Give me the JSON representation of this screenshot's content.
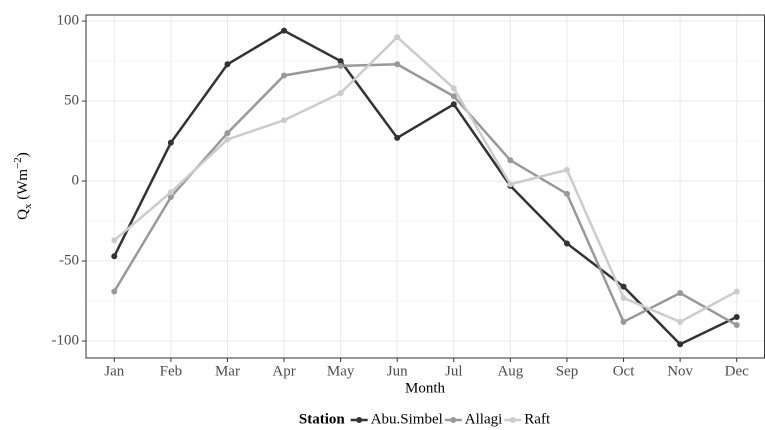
{
  "chart_data": {
    "type": "line",
    "x_label": "Month",
    "y_label": [
      "Q",
      "x",
      " (Wm",
      "−2",
      ")"
    ],
    "legend_title": "Station",
    "legend_position": "bottom",
    "grid": true,
    "categories": [
      "Jan",
      "Feb",
      "Mar",
      "Apr",
      "May",
      "Jun",
      "Jul",
      "Aug",
      "Sep",
      "Oct",
      "Nov",
      "Dec"
    ],
    "ylim": [
      -110.6,
      103.8
    ],
    "yticks": [
      -100,
      -50,
      0,
      50,
      100
    ],
    "series": [
      {
        "name": "Abu.Simbel",
        "color": "#333333",
        "values": [
          -47,
          24,
          73,
          94,
          75,
          27,
          48,
          -3,
          -39,
          -66,
          -102,
          -85
        ]
      },
      {
        "name": "Allagi",
        "color": "#999999",
        "values": [
          -69,
          -10,
          30,
          66,
          72,
          73,
          53,
          13,
          -8,
          -88,
          -70,
          -90
        ]
      },
      {
        "name": "Raft",
        "color": "#cccccc",
        "values": [
          -37,
          -7,
          26,
          38,
          55,
          90,
          58,
          -2,
          7,
          -73,
          -88,
          -69
        ]
      }
    ]
  }
}
